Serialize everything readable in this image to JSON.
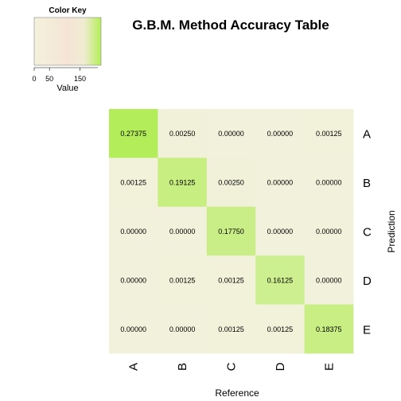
{
  "chart_data": {
    "type": "heatmap",
    "title": "G.B.M. Method Accuracy Table",
    "xlabel": "Reference",
    "ylabel": "Prediction",
    "x_categories": [
      "A",
      "B",
      "C",
      "D",
      "E"
    ],
    "y_categories": [
      "A",
      "B",
      "C",
      "D",
      "E"
    ],
    "values": [
      [
        "0.27375",
        "0.00250",
        "0.00000",
        "0.00000",
        "0.00125"
      ],
      [
        "0.00125",
        "0.19125",
        "0.00250",
        "0.00000",
        "0.00000"
      ],
      [
        "0.00000",
        "0.00000",
        "0.17750",
        "0.00000",
        "0.00000"
      ],
      [
        "0.00000",
        "0.00125",
        "0.00125",
        "0.16125",
        "0.00000"
      ],
      [
        "0.00000",
        "0.00000",
        "0.00125",
        "0.00125",
        "0.18375"
      ]
    ],
    "color_low": "#f2f1db",
    "color_high": "#b4ed5a",
    "color_key": {
      "title": "Color Key",
      "label": "Value",
      "ticks": [
        "0",
        "50",
        "150"
      ],
      "tick_values": [
        0,
        50,
        150
      ],
      "range": [
        0,
        219
      ],
      "colors": [
        "#f3f1db",
        "#f4ebd9",
        "#f5e4d6",
        "#f0ecd2",
        "#b4ee56"
      ]
    }
  }
}
